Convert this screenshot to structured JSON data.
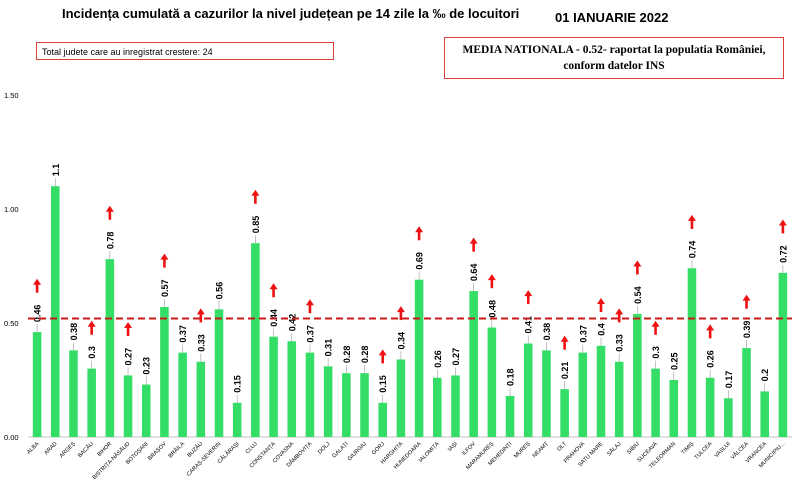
{
  "header": {
    "title": "Incidența cumulată a cazurilor la nivel județean pe 14 zile la ‰ de locuitori",
    "date": "01 IANUARIE 2022",
    "total_increase": "Total judete care au inregistrat crestere: 24",
    "national_line1": "MEDIA NATIONALA - 0.52-  raportat la populatia României,",
    "national_line2": "conform datelor INS"
  },
  "colors": {
    "bar": "#33dd66",
    "arrow": "#ee1111",
    "reference_line": "#cc1a1a",
    "box_border": "#e0403a"
  },
  "chart_data": {
    "type": "bar",
    "title": "Incidența cumulată a cazurilor la nivel județean pe 14 zile la ‰ de locuitori",
    "ylim": [
      0,
      1.5
    ],
    "yticks": [
      0.0,
      0.5,
      1.0,
      1.5
    ],
    "ytick_labels": [
      "0.00",
      "0.50",
      "1.00",
      "1.50"
    ],
    "reference_line": {
      "value": 0.52,
      "style": "dashed"
    },
    "grid": false,
    "categories": [
      "ALBA",
      "ARAD",
      "ARGEȘ",
      "BACĂU",
      "BIHOR",
      "BISTRIȚA-NĂSĂUD",
      "BOTOȘANI",
      "BRAȘOV",
      "BRĂILA",
      "BUZĂU",
      "CARAȘ-SEVERIN",
      "CĂLĂRAȘI",
      "CLUJ",
      "CONSTANȚA",
      "COVASNA",
      "DÂMBOVIȚA",
      "DOLJ",
      "GALAȚI",
      "GIURGIU",
      "GORJ",
      "HARGHITA",
      "HUNEDOARA",
      "IALOMIȚA",
      "IAȘI",
      "ILFOV",
      "MARAMUREȘ",
      "MEHEDINȚI",
      "MUREȘ",
      "NEAMȚ",
      "OLT",
      "PRAHOVA",
      "SATU MARE",
      "SĂLAJ",
      "SIBIU",
      "SUCEAVA",
      "TELEORMAN",
      "TIMIȘ",
      "TULCEA",
      "VASLUI",
      "VÂLCEA",
      "VRANCEA",
      "MUNICIPIU..."
    ],
    "values": [
      0.46,
      1.1,
      0.38,
      0.3,
      0.78,
      0.27,
      0.23,
      0.57,
      0.37,
      0.33,
      0.56,
      0.15,
      0.85,
      0.44,
      0.42,
      0.37,
      0.31,
      0.28,
      0.28,
      0.15,
      0.34,
      0.69,
      0.26,
      0.27,
      0.64,
      0.48,
      0.18,
      0.41,
      0.38,
      0.21,
      0.37,
      0.4,
      0.33,
      0.54,
      0.3,
      0.25,
      0.74,
      0.26,
      0.17,
      0.39,
      0.2,
      0.72
    ],
    "value_labels": [
      "0.46",
      "1.1",
      "0.38",
      "0.3",
      "0.78",
      "0.27",
      "0.23",
      "0.57",
      "0.37",
      "0.33",
      "0.56",
      "0.15",
      "0.85",
      "0.44",
      "0.42",
      "0.37",
      "0.31",
      "0.28",
      "0.28",
      "0.15",
      "0.34",
      "0.69",
      "0.26",
      "0.27",
      "0.64",
      "0.48",
      "0.18",
      "0.41",
      "0.38",
      "0.21",
      "0.37",
      "0.4",
      "0.33",
      "0.54",
      "0.3",
      "0.25",
      "0.74",
      "0.26",
      "0.17",
      "0.39",
      "0.2",
      "0.72"
    ],
    "increase": [
      true,
      false,
      false,
      true,
      true,
      true,
      false,
      true,
      false,
      true,
      false,
      false,
      true,
      true,
      false,
      true,
      false,
      false,
      false,
      true,
      true,
      true,
      false,
      false,
      true,
      true,
      false,
      true,
      false,
      true,
      false,
      true,
      true,
      true,
      true,
      false,
      true,
      true,
      false,
      true,
      false,
      true
    ]
  }
}
